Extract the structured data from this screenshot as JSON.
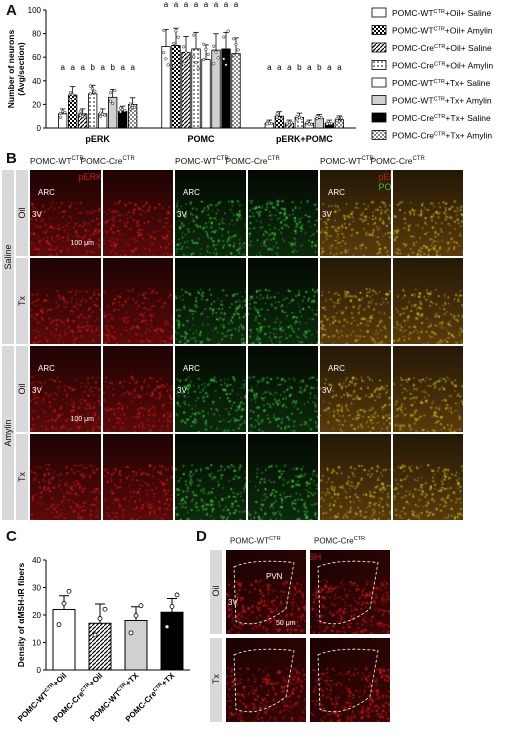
{
  "panels": {
    "a": "A",
    "b": "B",
    "c": "C",
    "d": "D"
  },
  "chart_data": [
    {
      "type": "bar",
      "panel": "A",
      "ylabel": "Number of neurons (Avg/section)",
      "ylim": [
        0,
        100
      ],
      "yticks": [
        "0",
        "20",
        "40",
        "60",
        "80",
        "100"
      ],
      "groups": [
        "pERK",
        "POMC",
        "pERK+POMC"
      ],
      "legend": [
        "POMC-WT^CTR+Oil+ Saline",
        "POMC-WT^CTR+Oil+ Amylin",
        "POMC-Cre^CTR+Oil+ Saline",
        "POMC-Cre^CTR+Oil+ Amylin",
        "POMC-WT^CTR+Tx+ Saline",
        "POMC-WT^CTR+Tx+ Amylin",
        "POMC-Cre^CTR+Tx+ Saline",
        "POMC-Cre^CTR+Tx+ Amylin"
      ],
      "values": [
        [
          12,
          28,
          12,
          29,
          12,
          26,
          14,
          20
        ],
        [
          69,
          70,
          64,
          67,
          58,
          66,
          67,
          63
        ],
        [
          4,
          10,
          4,
          9,
          4,
          8,
          4,
          7
        ]
      ],
      "letters": [
        [
          "a",
          "a",
          "a",
          "b",
          "a",
          "b",
          "a",
          "a"
        ],
        [
          "a",
          "a",
          "a",
          "a",
          "a",
          "a",
          "a",
          "a"
        ],
        [
          "a",
          "a",
          "a",
          "b",
          "a",
          "b",
          "a",
          "a"
        ]
      ]
    },
    {
      "type": "bar",
      "panel": "C",
      "ylabel": "Density of αMSH-IR fibers",
      "ylim": [
        0,
        40
      ],
      "yticks": [
        "0",
        "10",
        "20",
        "30",
        "40"
      ],
      "categories": [
        "POMC-WT^CTR+Oil",
        "POMC-Cre^CTR+Oil",
        "POMC-WT^CTR+TX",
        "POMC-Cre^CTR+TX"
      ],
      "values": [
        22,
        17,
        18,
        21
      ]
    }
  ],
  "panel_b": {
    "col_headers": [
      "POMC-WT^CTR",
      "POMC-Cre^CTR",
      "POMC-WT^CTR",
      "POMC-Cre^CTR",
      "POMC-WT^CTR",
      "POMC-Cre^CTR"
    ],
    "stain_perk": "pERK",
    "stain_pomc": "POMC",
    "groups": [
      "Saline",
      "Amylin"
    ],
    "rows": [
      "Oil",
      "Tx",
      "Oil",
      "Tx"
    ],
    "arc": "ARC",
    "v3": "3V",
    "scale": "100 μm"
  },
  "panel_d": {
    "col_headers": [
      "POMC-WT^CTR",
      "POMC-Cre^CTR"
    ],
    "stain": "αMSH",
    "rows": [
      "Oil",
      "Tx"
    ],
    "pvn": "PVN",
    "v3": "3V",
    "scale": "50 μm"
  },
  "colors": {
    "red": "#d01818",
    "green": "#38c038",
    "micro_red_bg": "#3a0606",
    "micro_green_bg": "#061606",
    "micro_merge_bg": "#3a2608"
  }
}
